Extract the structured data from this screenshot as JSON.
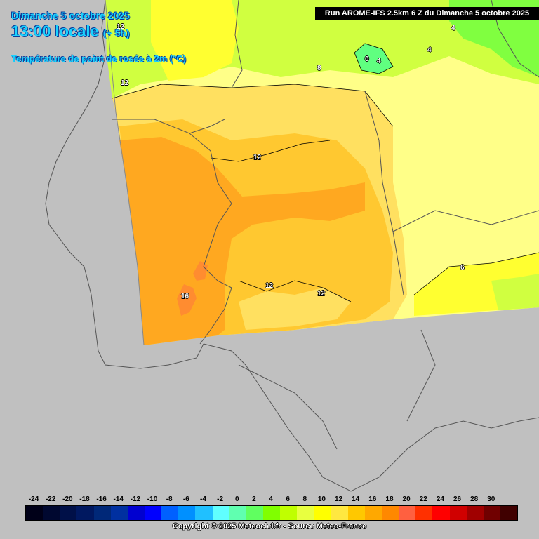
{
  "header": {
    "date": "Dimanche 5 octobre 2025",
    "time": "13:00 locale",
    "offset": "(+ 5h)",
    "parameter": "Température de point de rosée à 2m (°C)"
  },
  "run_info": "Run AROME-IFS 2.5km 6 Z du Dimanche 5 octobre 2025",
  "contour_labels": [
    "12",
    "12",
    "8",
    "0",
    "4",
    "4",
    "4",
    "12",
    "16",
    "12",
    "12",
    "6"
  ],
  "legend": {
    "ticks": [
      "-24",
      "-22",
      "-20",
      "-18",
      "-16",
      "-14",
      "-12",
      "-10",
      "-8",
      "-6",
      "-4",
      "-2",
      "0",
      "2",
      "4",
      "6",
      "8",
      "10",
      "12",
      "14",
      "16",
      "18",
      "20",
      "22",
      "24",
      "26",
      "28",
      "30"
    ],
    "colors": [
      "#000018",
      "#000830",
      "#001048",
      "#001860",
      "#002878",
      "#0030a0",
      "#0000d0",
      "#0000ff",
      "#0060ff",
      "#0090ff",
      "#20c0ff",
      "#60ffff",
      "#60ffb0",
      "#60ff60",
      "#80ff00",
      "#c0ff00",
      "#e8ff40",
      "#ffff00",
      "#ffe840",
      "#ffc800",
      "#ffa800",
      "#ff8800",
      "#ff6040",
      "#ff3000",
      "#ff0000",
      "#d00000",
      "#a00000",
      "#700000",
      "#400000"
    ]
  },
  "copyright": "Copyright © 2025 Meteociel.fr - Source Meteo-France",
  "field_colors": {
    "background_sea_land": "#c0c0c0",
    "green": "#80ff40",
    "yellow_green": "#d0ff40",
    "yellow": "#ffff60",
    "pale_yellow": "#ffff88",
    "light_orange": "#ffe060",
    "orange_yellow": "#ffc830",
    "orange": "#ffa820",
    "dark_orange": "#ff8c30"
  }
}
